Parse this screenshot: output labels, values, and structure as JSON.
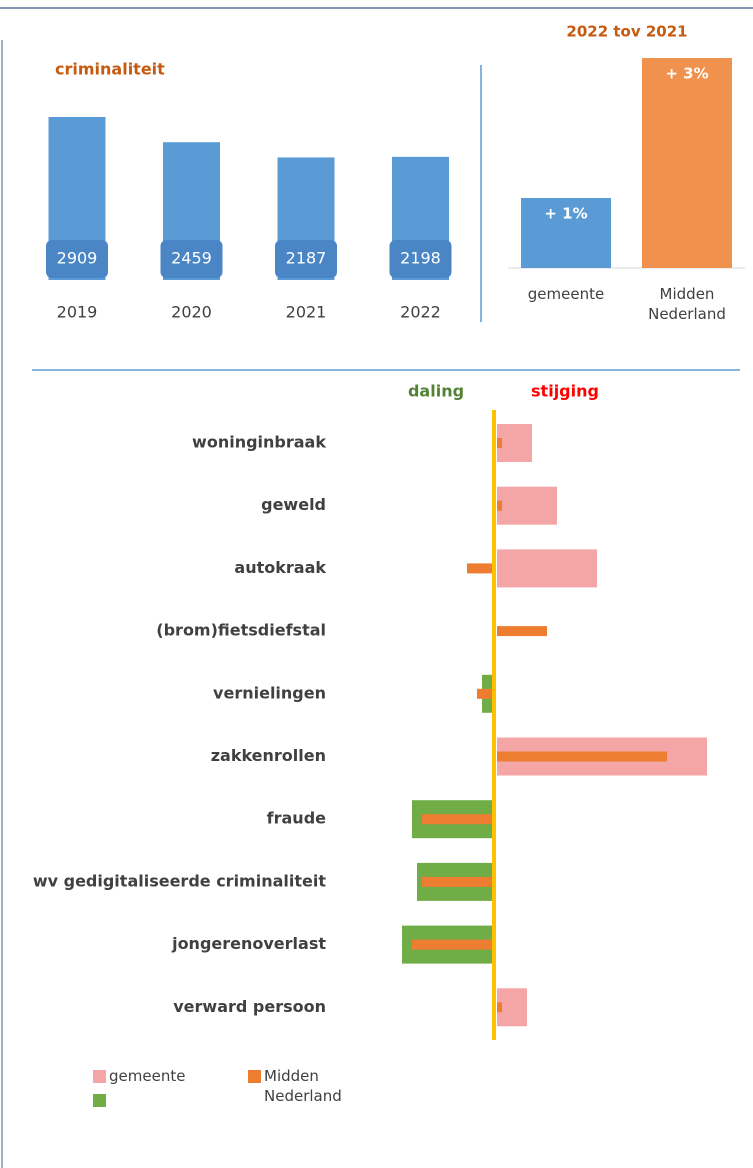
{
  "chart_data": [
    {
      "type": "bar",
      "title": "criminaliteit",
      "categories": [
        "2019",
        "2020",
        "2021",
        "2022"
      ],
      "values": [
        2909,
        2459,
        2187,
        2198
      ],
      "color": "#5b9bd5"
    },
    {
      "type": "bar",
      "title": "2022 tov 2021",
      "categories": [
        "gemeente",
        "Midden Nederland"
      ],
      "values": [
        1,
        3
      ],
      "value_labels": [
        "+ 1%",
        "+ 3%"
      ],
      "colors": [
        "#5b9bd5",
        "#f0914d"
      ]
    },
    {
      "type": "hbar",
      "annotations": [
        "daling",
        "stijging"
      ],
      "annotation_colors": [
        "#548235",
        "#ff0000"
      ],
      "categories": [
        "woninginbraak",
        "geweld",
        "autokraak",
        "(brom)fietsdiefstal",
        "vernielingen",
        "zakkenrollen",
        "fraude",
        "wv gedigitaliseerde criminaliteit",
        "jongerenoverlast",
        "verward persoon"
      ],
      "series": [
        {
          "name": "gemeente",
          "color": "#f4a6a6",
          "negative_color": "#70ad47",
          "values": [
            7,
            12,
            20,
            0,
            -2,
            42,
            -16,
            -15,
            -18,
            6
          ]
        },
        {
          "name": "Midden Nederland",
          "color": "#ed7d31",
          "values": [
            1,
            1,
            -5,
            10,
            -3,
            34,
            -14,
            -14,
            -16,
            1
          ]
        }
      ]
    }
  ]
}
